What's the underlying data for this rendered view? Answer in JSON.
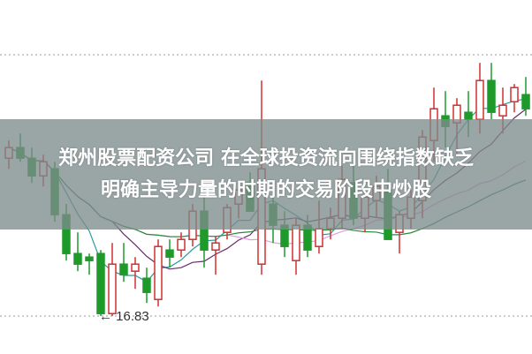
{
  "headline": {
    "line1": "郑州股票配资公司 在全球投资流向围绕指数缺乏",
    "line2": "明确主导力量的时期的交易阶段中炒股"
  },
  "chart_data": {
    "type": "candlestick",
    "title": "",
    "xlabel": "",
    "ylabel": "",
    "ylim": [
      16.5,
      24.5
    ],
    "grid": "dotted horizontal reference lines",
    "colors": {
      "up": "#d03030",
      "down": "#1e9a2a",
      "ma_lines": [
        "#2a9aa0",
        "#6a2a6a",
        "#e49ae0",
        "#2a8a3a"
      ]
    },
    "low_annotation": {
      "label": "16.83",
      "value": 16.83,
      "arrow": "←"
    },
    "candles": [
      [
        21.3,
        21.8,
        21.0,
        21.6
      ],
      [
        21.6,
        22.0,
        21.2,
        21.3
      ],
      [
        21.3,
        21.6,
        20.6,
        20.8
      ],
      [
        20.8,
        21.4,
        20.5,
        21.2
      ],
      [
        21.0,
        21.2,
        19.5,
        19.7
      ],
      [
        19.7,
        20.0,
        18.4,
        18.6
      ],
      [
        18.6,
        19.2,
        18.1,
        18.3
      ],
      [
        18.5,
        18.6,
        18.0,
        18.4
      ],
      [
        18.6,
        18.7,
        16.83,
        16.9
      ],
      [
        16.9,
        18.9,
        16.83,
        18.3
      ],
      [
        18.3,
        18.9,
        17.8,
        18.0
      ],
      [
        18.1,
        18.5,
        17.6,
        18.3
      ],
      [
        17.9,
        18.2,
        17.2,
        17.5
      ],
      [
        17.3,
        19.0,
        17.1,
        18.8
      ],
      [
        18.7,
        19.0,
        18.2,
        18.5
      ],
      [
        18.7,
        19.2,
        18.5,
        19.0
      ],
      [
        19.0,
        20.0,
        18.8,
        19.8
      ],
      [
        19.8,
        20.5,
        18.2,
        18.7
      ],
      [
        18.7,
        19.1,
        18.0,
        18.9
      ],
      [
        19.2,
        20.0,
        19.0,
        19.9
      ],
      [
        20.0,
        20.6,
        19.6,
        20.4
      ],
      [
        20.6,
        20.9,
        19.8,
        19.8
      ],
      [
        18.3,
        23.5,
        18.0,
        21.0
      ],
      [
        20.0,
        20.4,
        18.9,
        19.4
      ],
      [
        19.4,
        19.8,
        18.5,
        18.8
      ],
      [
        18.4,
        19.6,
        18.0,
        19.4
      ],
      [
        19.4,
        19.7,
        18.5,
        18.7
      ],
      [
        18.8,
        20.1,
        18.6,
        19.3
      ],
      [
        19.3,
        19.9,
        19.0,
        19.6
      ],
      [
        19.6,
        21.1,
        19.3,
        20.7
      ],
      [
        20.6,
        21.2,
        19.4,
        19.6
      ],
      [
        19.6,
        20.4,
        19.2,
        20.2
      ],
      [
        20.1,
        20.8,
        19.6,
        20.5
      ],
      [
        20.4,
        21.0,
        19.0,
        19.0
      ],
      [
        19.2,
        19.8,
        18.6,
        19.7
      ],
      [
        19.6,
        20.4,
        19.3,
        20.2
      ],
      [
        20.1,
        22.1,
        19.6,
        21.9
      ],
      [
        21.8,
        23.3,
        21.2,
        22.7
      ],
      [
        22.5,
        23.2,
        21.6,
        22.2
      ],
      [
        22.3,
        23.0,
        21.4,
        22.8
      ],
      [
        22.6,
        23.2,
        21.9,
        22.4
      ],
      [
        22.4,
        24.0,
        22.0,
        23.5
      ],
      [
        23.5,
        24.0,
        22.4,
        22.6
      ],
      [
        22.5,
        23.3,
        22.0,
        22.8
      ],
      [
        22.9,
        23.4,
        22.6,
        23.3
      ],
      [
        23.1,
        23.6,
        22.5,
        22.7
      ]
    ],
    "candle_fields": [
      "open",
      "high",
      "low",
      "close"
    ]
  }
}
